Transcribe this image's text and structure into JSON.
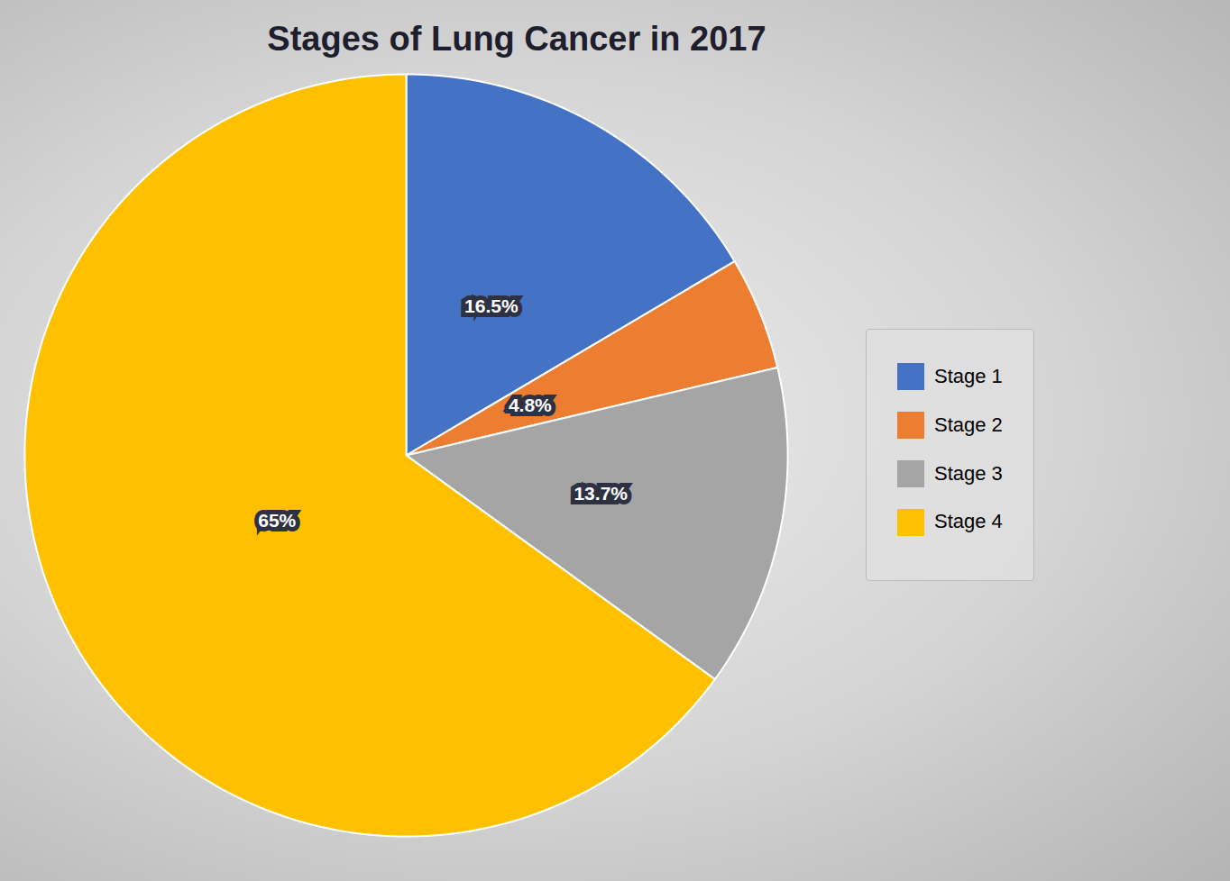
{
  "chart_data": {
    "type": "pie",
    "title": "Stages of Lung Cancer in 2017",
    "categories": [
      "Stage 1",
      "Stage 2",
      "Stage 3",
      "Stage 4"
    ],
    "values": [
      16.5,
      4.8,
      13.7,
      65.0
    ],
    "value_labels": [
      "16.5%",
      "4.8%",
      "13.7%",
      "65%"
    ],
    "colors": [
      "#4472C4",
      "#ED7D31",
      "#A5A5A5",
      "#FFC000"
    ],
    "data_labels": true,
    "legend": "right"
  }
}
